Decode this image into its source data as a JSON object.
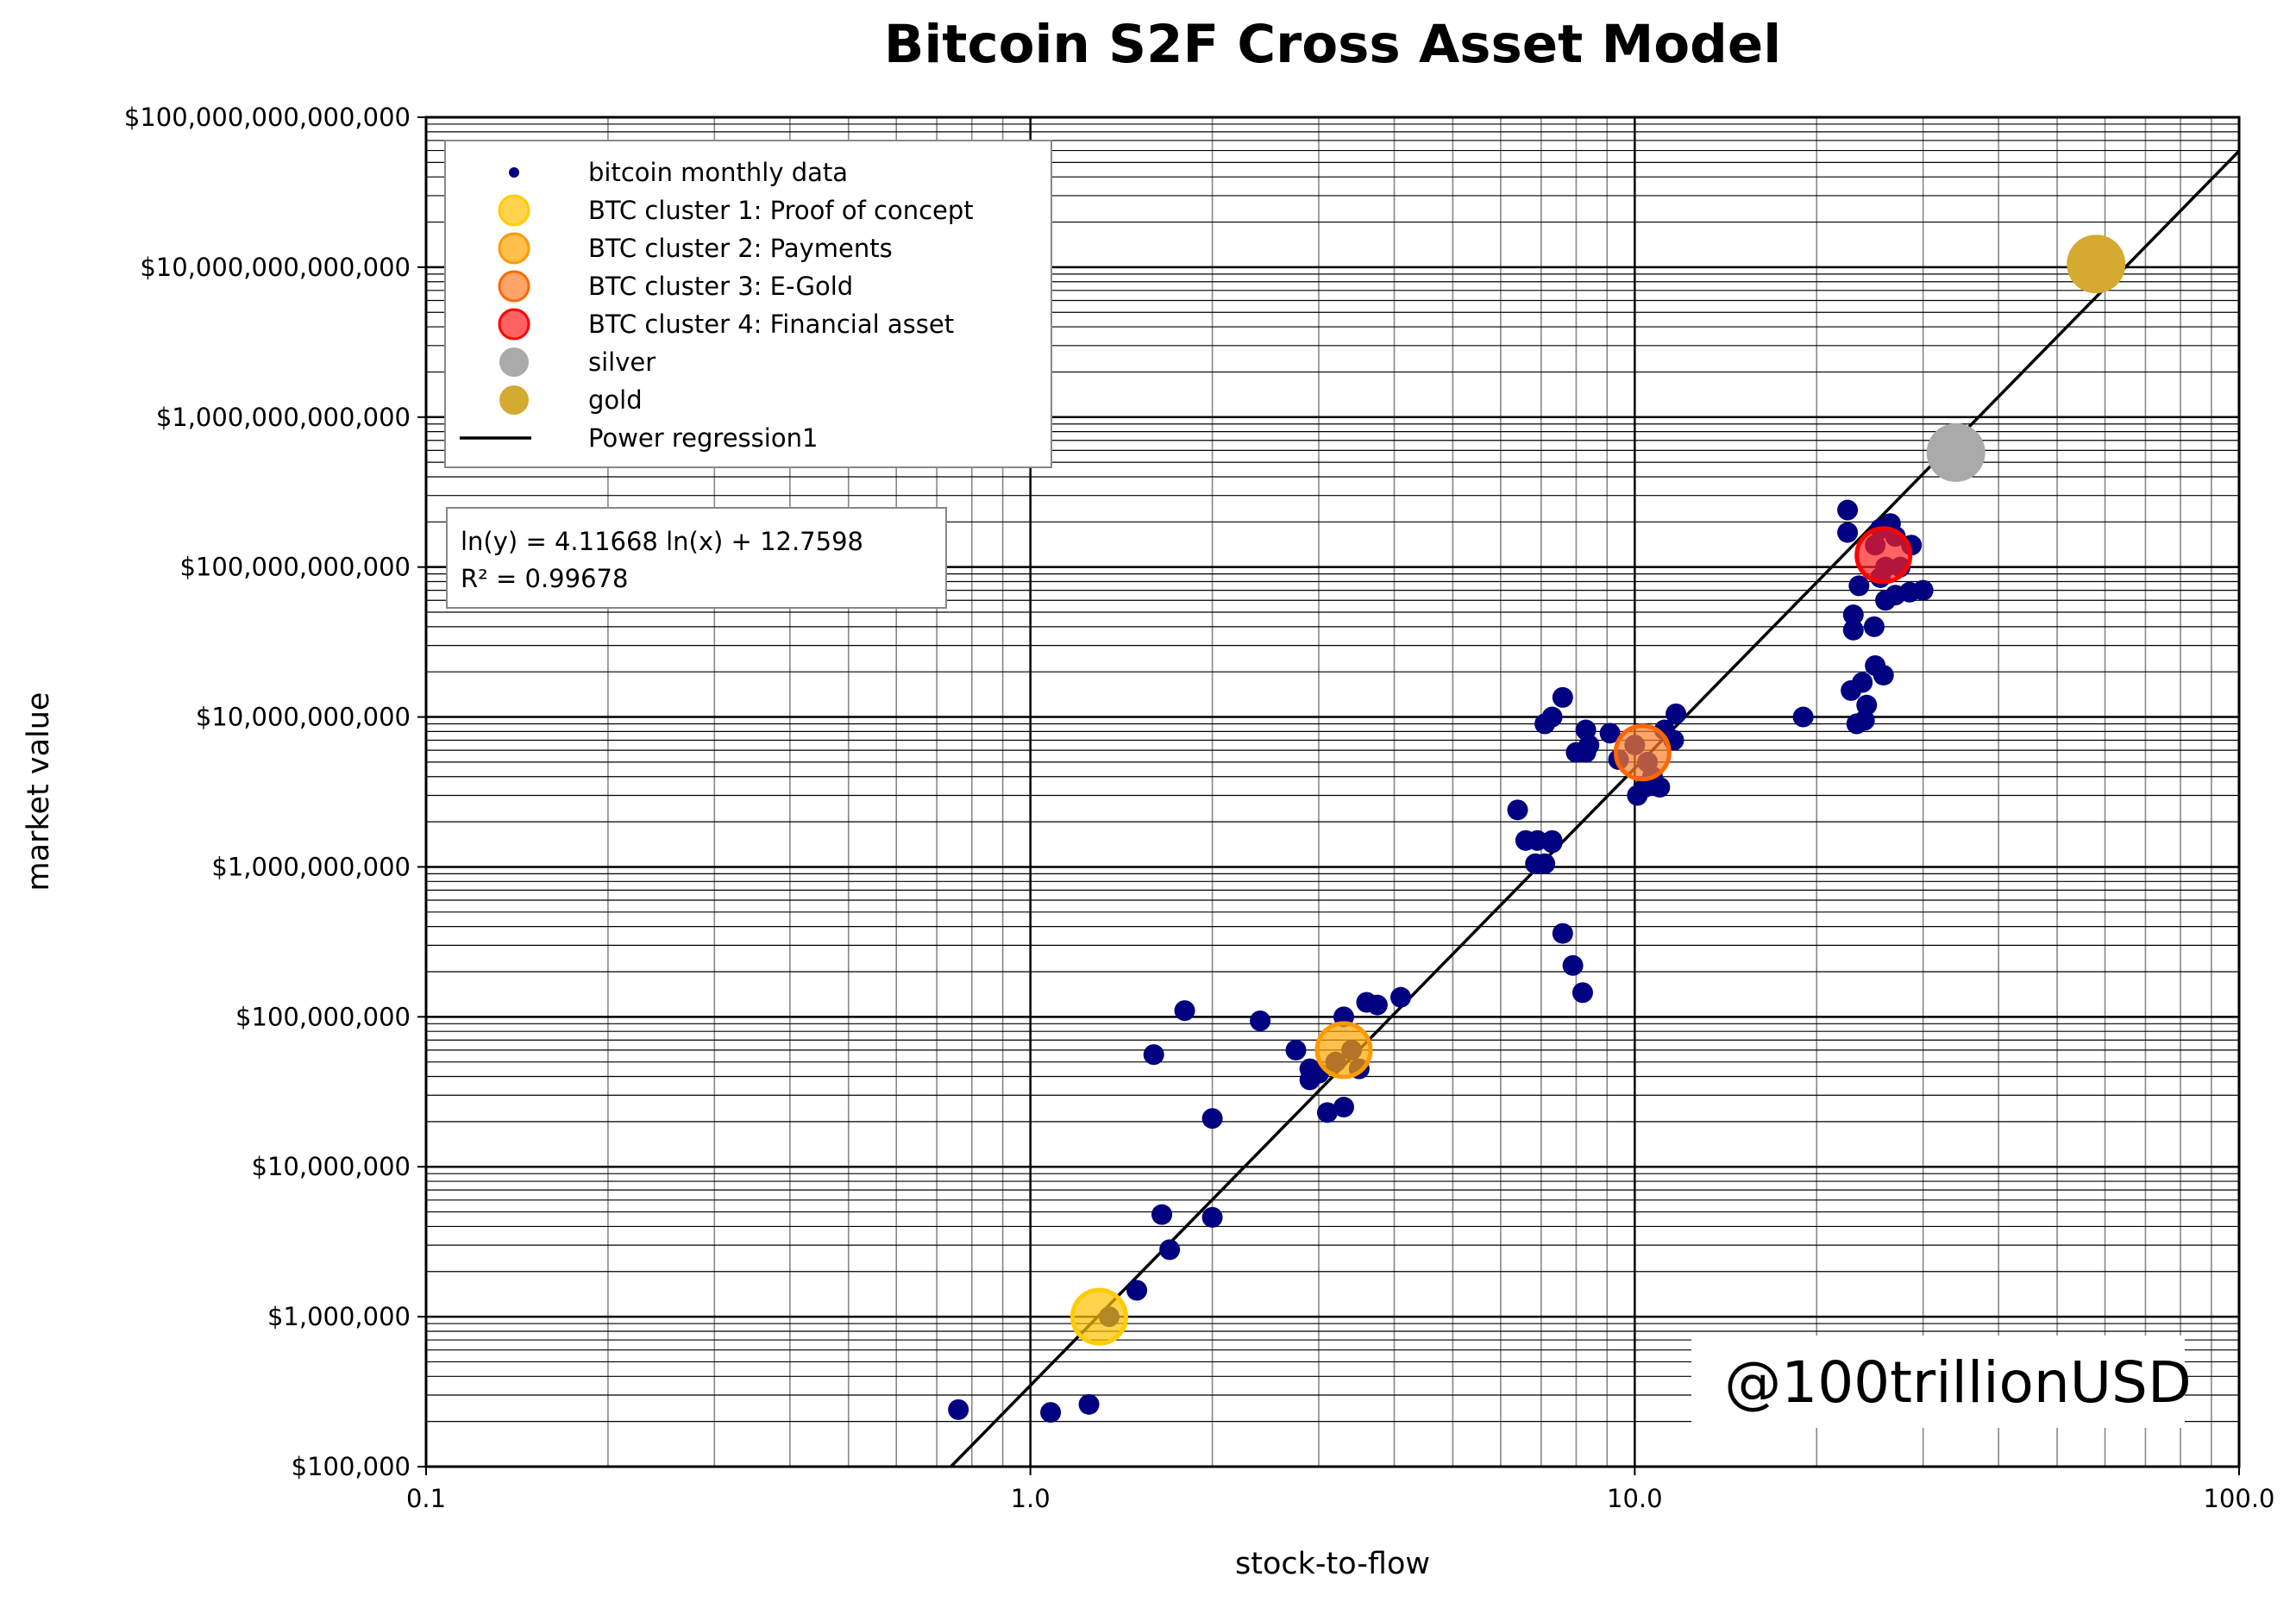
{
  "chart_data": {
    "type": "scatter",
    "title": "Bitcoin S2F Cross Asset Model",
    "xlabel": "stock-to-flow",
    "ylabel": "market value",
    "xscale": "log",
    "yscale": "log",
    "xlim": [
      0.1,
      100
    ],
    "ylim": [
      100000,
      100000000000000
    ],
    "grid": true,
    "legend_position": "top-left",
    "x_ticks": [
      "0.1",
      "1.0",
      "10.0",
      "100.0"
    ],
    "y_ticks": [
      "$100,000",
      "$1,000,000",
      "$10,000,000",
      "$100,000,000",
      "$1,000,000,000",
      "$10,000,000,000",
      "$100,000,000,000",
      "$1,000,000,000,000",
      "$10,000,000,000,000",
      "$100,000,000,000,000"
    ],
    "series": [
      {
        "name": "bitcoin monthly data",
        "color": "#000080",
        "points": [
          [
            0.76,
            240000.0
          ],
          [
            1.08,
            230000.0
          ],
          [
            1.25,
            260000.0
          ],
          [
            1.35,
            1000000.0
          ],
          [
            1.5,
            1500000.0
          ],
          [
            1.65,
            4800000.0
          ],
          [
            1.7,
            2800000.0
          ],
          [
            2.0,
            4600000.0
          ],
          [
            2.0,
            21000000.0
          ],
          [
            1.6,
            56000000.0
          ],
          [
            1.8,
            110000000.0
          ],
          [
            2.4,
            94000000.0
          ],
          [
            2.75,
            60000000.0
          ],
          [
            2.9,
            45000000.0
          ],
          [
            2.9,
            38000000.0
          ],
          [
            3.1,
            23000000.0
          ],
          [
            3.3,
            25000000.0
          ],
          [
            3.3,
            100000000.0
          ],
          [
            3.4,
            60000000.0
          ],
          [
            3.5,
            45000000.0
          ],
          [
            3.6,
            125000000.0
          ],
          [
            3.75,
            120000000.0
          ],
          [
            4.1,
            135000000.0
          ],
          [
            3.2,
            50000000.0
          ],
          [
            3.0,
            42000000.0
          ],
          [
            6.4,
            2400000000.0
          ],
          [
            6.6,
            1500000000.0
          ],
          [
            6.85,
            1050000000.0
          ],
          [
            6.9,
            1500000000.0
          ],
          [
            7.1,
            1050000000.0
          ],
          [
            7.3,
            1500000000.0
          ],
          [
            7.3,
            1450000000.0
          ],
          [
            7.1,
            9000000000.0
          ],
          [
            7.3,
            10000000000.0
          ],
          [
            7.6,
            13500000000.0
          ],
          [
            7.6,
            360000000.0
          ],
          [
            7.9,
            220000000.0
          ],
          [
            8.2,
            145000000.0
          ],
          [
            8.0,
            5800000000.0
          ],
          [
            8.3,
            5800000000.0
          ],
          [
            8.3,
            8200000000.0
          ],
          [
            8.4,
            6500000000.0
          ],
          [
            9.1,
            7800000000.0
          ],
          [
            9.4,
            5200000000.0
          ],
          [
            10.1,
            3000000000.0
          ],
          [
            10.4,
            3400000000.0
          ],
          [
            10.7,
            4000000000.0
          ],
          [
            11.0,
            3400000000.0
          ],
          [
            11.2,
            8200000000.0
          ],
          [
            11.6,
            7000000000.0
          ],
          [
            11.7,
            10500000000.0
          ],
          [
            10.0,
            6500000000.0
          ],
          [
            10.5,
            5000000000.0
          ],
          [
            19,
            10000000000.0
          ],
          [
            22.5,
            240000000000.0
          ],
          [
            22.5,
            170000000000.0
          ],
          [
            22.8,
            15000000000.0
          ],
          [
            23,
            48000000000.0
          ],
          [
            23,
            38000000000.0
          ],
          [
            23.3,
            9000000000.0
          ],
          [
            23.5,
            75000000000.0
          ],
          [
            23.8,
            17000000000.0
          ],
          [
            24,
            9500000000.0
          ],
          [
            24.2,
            12000000000.0
          ],
          [
            24.9,
            40000000000.0
          ],
          [
            25,
            22000000000.0
          ],
          [
            25.5,
            180000000000.0
          ],
          [
            25.8,
            19000000000.0
          ],
          [
            26,
            60000000000.0
          ],
          [
            26.5,
            195000000000.0
          ],
          [
            27,
            160000000000.0
          ],
          [
            27,
            65000000000.0
          ],
          [
            27.5,
            100000000000.0
          ],
          [
            28.5,
            68000000000.0
          ],
          [
            28.7,
            140000000000.0
          ],
          [
            30,
            70000000000.0
          ],
          [
            25,
            140000000000.0
          ],
          [
            26,
            100000000000.0
          ],
          [
            25.5,
            85000000000.0
          ]
        ]
      },
      {
        "name": "BTC cluster 1: Proof of concept",
        "color": "#FFC000",
        "edge": "#FFCC00",
        "points": [
          [
            1.3,
            1000000.0
          ]
        ]
      },
      {
        "name": "BTC cluster 2: Payments",
        "color": "#FFA500",
        "edge": "#FF9900",
        "points": [
          [
            3.3,
            60000000.0
          ]
        ]
      },
      {
        "name": "BTC cluster 3: E-Gold",
        "color": "#FF7F2A",
        "edge": "#FF6600",
        "points": [
          [
            10.3,
            5800000000.0
          ]
        ]
      },
      {
        "name": "BTC cluster 4: Financial asset",
        "color": "#FF2020",
        "edge": "#FF0000",
        "points": [
          [
            25.8,
            120000000000.0
          ]
        ]
      },
      {
        "name": "silver",
        "color": "#AAAAAA",
        "points": [
          [
            34,
            580000000000.0
          ]
        ]
      },
      {
        "name": "gold",
        "color": "#D4AA30",
        "points": [
          [
            58,
            10500000000000.0
          ]
        ]
      }
    ],
    "regression": {
      "name": "Power regression1",
      "slope": 4.11668,
      "intercept": 12.7598,
      "equation": "ln(y) = 4.11668 ln(x) + 12.7598",
      "r2": "R² = 0.99678"
    },
    "watermark": "@100trillionUSD"
  }
}
